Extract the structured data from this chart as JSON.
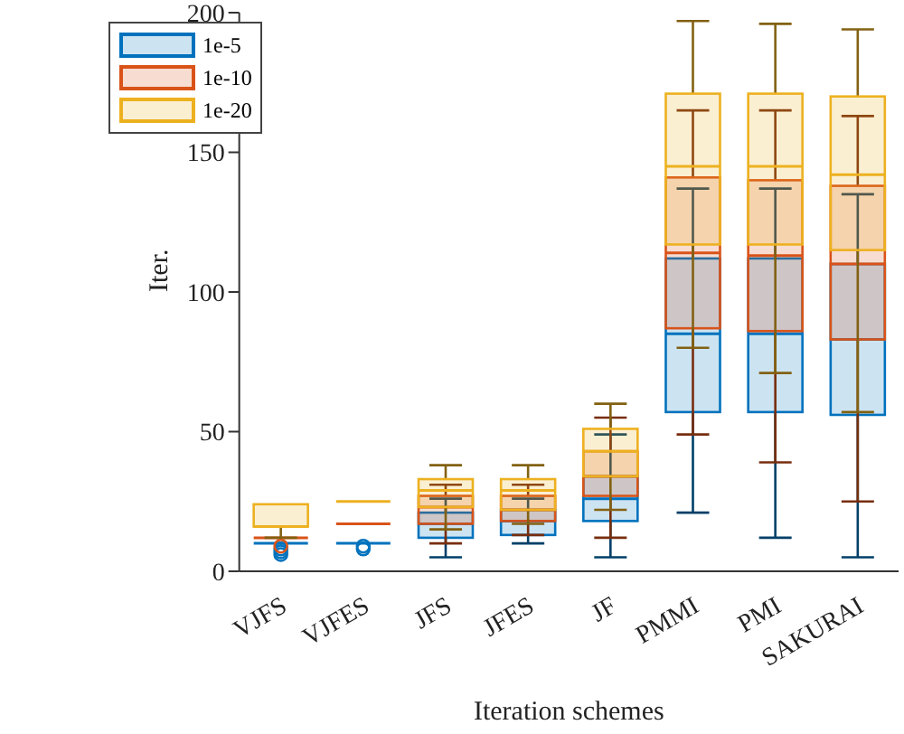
{
  "chart_data": {
    "type": "box",
    "xlabel": "Iteration schemes",
    "ylabel": "Iter.",
    "categories": [
      "VJFS",
      "VJFES",
      "JFS",
      "JFES",
      "JF",
      "PMMI",
      "PMI",
      "SAKURAI"
    ],
    "ylim": [
      0,
      200
    ],
    "yticks": [
      0,
      50,
      100,
      150,
      200
    ],
    "grid": false,
    "legend": "top left",
    "series": [
      {
        "name": "1e-5",
        "color": "#0072bd",
        "boxes": [
          {
            "low": 10,
            "q1": 10,
            "median": 10,
            "q3": 10,
            "high": 10,
            "outliers": [
              6,
              7,
              8
            ]
          },
          {
            "low": 10,
            "q1": 10,
            "median": 10,
            "q3": 10,
            "high": 10,
            "outliers": [
              8,
              9
            ]
          },
          {
            "low": 5,
            "q1": 12,
            "median": 17,
            "q3": 21,
            "high": 26
          },
          {
            "low": 10,
            "q1": 13,
            "median": 18,
            "q3": 22,
            "high": 26
          },
          {
            "low": 5,
            "q1": 18,
            "median": 26,
            "q3": 34,
            "high": 49
          },
          {
            "low": 21,
            "q1": 57,
            "median": 85,
            "q3": 112,
            "high": 137
          },
          {
            "low": 12,
            "q1": 57,
            "median": 85,
            "q3": 112,
            "high": 137
          },
          {
            "low": 5,
            "q1": 56,
            "median": 83,
            "q3": 110,
            "high": 135
          }
        ]
      },
      {
        "name": "1e-10",
        "color": "#d95319",
        "boxes": [
          {
            "low": 12,
            "q1": 12,
            "median": 12,
            "q3": 12,
            "high": 12,
            "outliers": [
              9
            ]
          },
          {
            "low": 17,
            "q1": 17,
            "median": 17,
            "q3": 17,
            "high": 17
          },
          {
            "low": 10,
            "q1": 17,
            "median": 23,
            "q3": 27,
            "high": 31
          },
          {
            "low": 13,
            "q1": 18,
            "median": 22,
            "q3": 27,
            "high": 31
          },
          {
            "low": 12,
            "q1": 27,
            "median": 34,
            "q3": 43,
            "high": 55
          },
          {
            "low": 49,
            "q1": 87,
            "median": 114,
            "q3": 141,
            "high": 165
          },
          {
            "low": 39,
            "q1": 86,
            "median": 113,
            "q3": 140,
            "high": 165
          },
          {
            "low": 25,
            "q1": 83,
            "median": 110,
            "q3": 138,
            "high": 163
          }
        ]
      },
      {
        "name": "1e-20",
        "color": "#edb120",
        "boxes": [
          {
            "low": 12,
            "q1": 16,
            "median": 16,
            "q3": 24,
            "high": 24
          },
          {
            "low": 25,
            "q1": 25,
            "median": 25,
            "q3": 25,
            "high": 25
          },
          {
            "low": 15,
            "q1": 23,
            "median": 29,
            "q3": 33,
            "high": 38
          },
          {
            "low": 17,
            "q1": 22,
            "median": 29,
            "q3": 33,
            "high": 38
          },
          {
            "low": 22,
            "q1": 34,
            "median": 43,
            "q3": 51,
            "high": 60
          },
          {
            "low": 80,
            "q1": 117,
            "median": 145,
            "q3": 171,
            "high": 197
          },
          {
            "low": 71,
            "q1": 117,
            "median": 145,
            "q3": 171,
            "high": 196
          },
          {
            "low": 57,
            "q1": 115,
            "median": 142,
            "q3": 170,
            "high": 194
          }
        ]
      }
    ]
  }
}
